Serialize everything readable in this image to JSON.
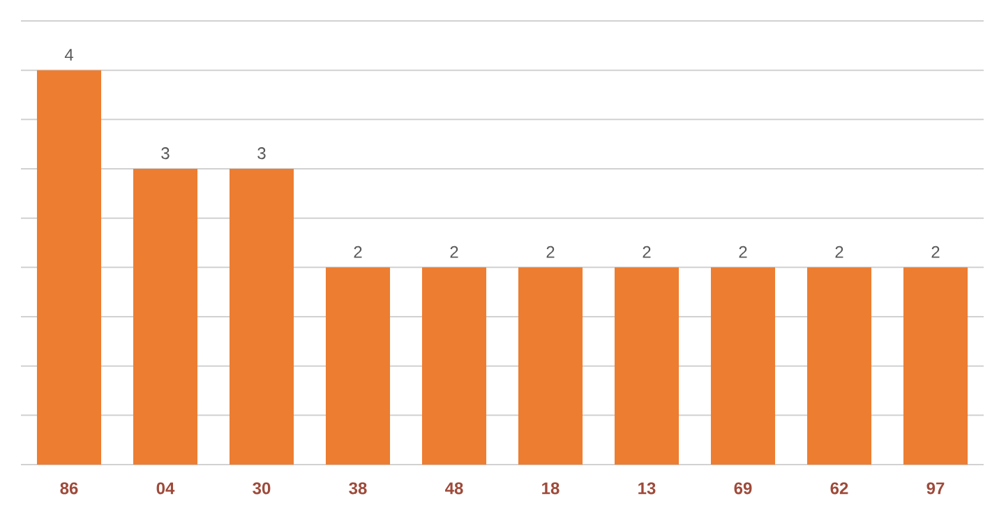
{
  "chart_data": {
    "type": "bar",
    "categories": [
      "86",
      "04",
      "30",
      "38",
      "48",
      "18",
      "13",
      "69",
      "62",
      "97"
    ],
    "values": [
      4,
      3,
      3,
      2,
      2,
      2,
      2,
      2,
      2,
      2
    ],
    "color": "#ed7d31",
    "ylim": [
      0,
      4.5
    ],
    "yticks": [
      {
        "value": 0,
        "label": null
      },
      {
        "value": 0.5,
        "label": null
      },
      {
        "value": 1,
        "label": null
      },
      {
        "value": 1.5,
        "label": null
      },
      {
        "value": 2,
        "label": null
      },
      {
        "value": 2.5,
        "label": null
      },
      {
        "value": 3,
        "label": null
      },
      {
        "value": 3.5,
        "label": null
      },
      {
        "value": 4,
        "label": null
      },
      {
        "value": 4.5,
        "label": null
      }
    ],
    "grid": "y",
    "tick_labels": "x",
    "data_labels": true
  }
}
